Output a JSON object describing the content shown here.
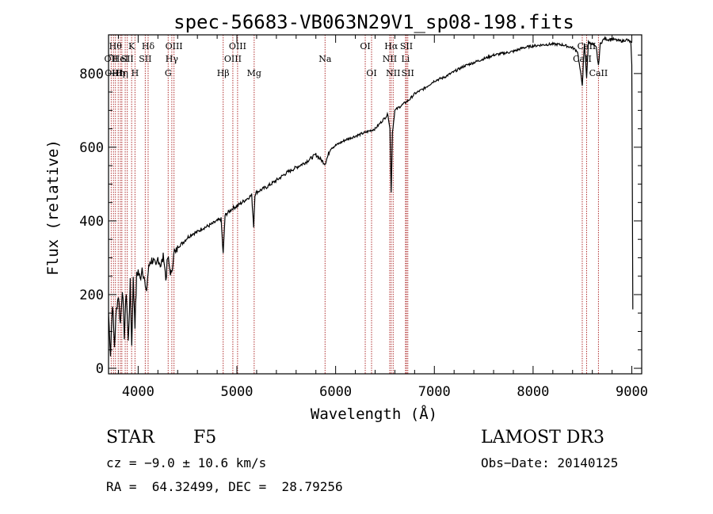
{
  "chart_data": {
    "type": "line",
    "title": "spec-56683-VB063N29V1_sp08-198.fits",
    "xlabel": "Wavelength (Å)",
    "ylabel": "Flux (relative)",
    "xlim": [
      3700,
      9100
    ],
    "ylim": [
      -15,
      905
    ],
    "xticks": [
      4000,
      5000,
      6000,
      7000,
      8000,
      9000
    ],
    "yticks": [
      0,
      200,
      400,
      600,
      800
    ],
    "xtick_labels": [
      "4000",
      "5000",
      "6000",
      "7000",
      "8000",
      "9000"
    ],
    "ytick_labels": [
      "0",
      "200",
      "400",
      "600",
      "800"
    ],
    "series": [
      {
        "name": "flux",
        "x": [
          3700,
          3720,
          3740,
          3760,
          3780,
          3800,
          3820,
          3840,
          3860,
          3880,
          3900,
          3920,
          3935,
          3950,
          3968,
          3985,
          4000,
          4020,
          4040,
          4060,
          4080,
          4101,
          4120,
          4150,
          4180,
          4200,
          4230,
          4260,
          4280,
          4300,
          4320,
          4340,
          4360,
          4380,
          4400,
          4450,
          4500,
          4550,
          4600,
          4650,
          4700,
          4750,
          4800,
          4840,
          4861,
          4880,
          4920,
          4960,
          5000,
          5050,
          5100,
          5150,
          5170,
          5183,
          5200,
          5250,
          5300,
          5400,
          5500,
          5600,
          5700,
          5800,
          5893,
          5950,
          6000,
          6100,
          6200,
          6300,
          6400,
          6450,
          6500,
          6530,
          6550,
          6563,
          6575,
          6600,
          6650,
          6700,
          6750,
          6800,
          6900,
          7000,
          7100,
          7200,
          7300,
          7400,
          7500,
          7600,
          7700,
          7800,
          7900,
          8000,
          8100,
          8200,
          8300,
          8400,
          8450,
          8498,
          8520,
          8542,
          8560,
          8600,
          8640,
          8662,
          8680,
          8720,
          8760,
          8800,
          8850,
          8900,
          8950,
          8990,
          9000,
          9010
        ],
        "values": [
          150,
          40,
          180,
          60,
          160,
          200,
          120,
          220,
          90,
          210,
          70,
          230,
          60,
          240,
          120,
          250,
          265,
          240,
          275,
          250,
          200,
          260,
          290,
          295,
          270,
          300,
          280,
          305,
          240,
          300,
          270,
          250,
          320,
          310,
          330,
          340,
          355,
          365,
          370,
          380,
          385,
          392,
          400,
          405,
          310,
          415,
          425,
          435,
          440,
          450,
          460,
          470,
          385,
          472,
          478,
          485,
          492,
          510,
          530,
          545,
          560,
          580,
          555,
          598,
          605,
          620,
          630,
          640,
          650,
          665,
          680,
          690,
          650,
          480,
          640,
          700,
          710,
          720,
          730,
          745,
          760,
          780,
          790,
          805,
          820,
          830,
          840,
          850,
          855,
          860,
          870,
          875,
          878,
          880,
          878,
          870,
          860,
          770,
          880,
          790,
          885,
          880,
          870,
          820,
          880,
          895,
          892,
          894,
          890,
          888,
          892,
          885,
          820,
          160
        ]
      }
    ],
    "lines": [
      {
        "x": 3727,
        "label": "OII",
        "row": 2
      },
      {
        "x": 3750,
        "label": "OIII",
        "row": 3
      },
      {
        "x": 3770,
        "label": "Hθ",
        "row": 1
      },
      {
        "x": 3798,
        "label": "Hη",
        "row": 3
      },
      {
        "x": 3820,
        "label": "HeI",
        "row": 2
      },
      {
        "x": 3835,
        "label": "Hη",
        "row": 3
      },
      {
        "x": 3869,
        "label": "",
        "row": 0
      },
      {
        "x": 3890,
        "label": "SII",
        "row": 2
      },
      {
        "x": 3934,
        "label": "K",
        "row": 1
      },
      {
        "x": 3968,
        "label": "H",
        "row": 3
      },
      {
        "x": 4072,
        "label": "SII",
        "row": 2
      },
      {
        "x": 4101,
        "label": "Hδ",
        "row": 1
      },
      {
        "x": 4304,
        "label": "G",
        "row": 3
      },
      {
        "x": 4341,
        "label": "Hγ",
        "row": 2
      },
      {
        "x": 4363,
        "label": "OIII",
        "row": 1
      },
      {
        "x": 4861,
        "label": "Hβ",
        "row": 3
      },
      {
        "x": 4959,
        "label": "OIII",
        "row": 2
      },
      {
        "x": 5007,
        "label": "OIII",
        "row": 1
      },
      {
        "x": 5175,
        "label": "Mg",
        "row": 3
      },
      {
        "x": 5893,
        "label": "Na",
        "row": 2
      },
      {
        "x": 6300,
        "label": "OI",
        "row": 1
      },
      {
        "x": 6364,
        "label": "OI",
        "row": 3
      },
      {
        "x": 6548,
        "label": "NII",
        "row": 2
      },
      {
        "x": 6563,
        "label": "Hα",
        "row": 1
      },
      {
        "x": 6583,
        "label": "NII",
        "row": 3
      },
      {
        "x": 6708,
        "label": "Li",
        "row": 2
      },
      {
        "x": 6717,
        "label": "SII",
        "row": 1
      },
      {
        "x": 6731,
        "label": "SII",
        "row": 3
      },
      {
        "x": 8498,
        "label": "CaII",
        "row": 2
      },
      {
        "x": 8542,
        "label": "CaII",
        "row": 1
      },
      {
        "x": 8662,
        "label": "CaII",
        "row": 3
      }
    ]
  },
  "info": {
    "object_class": "STAR",
    "subclass": "F5",
    "survey": "LAMOST DR3",
    "cz": "cz = −9.0 ± 10.6 km/s",
    "obs_date": "Obs−Date: 20140125",
    "coords": "RA =  64.32499, DEC =  28.79256"
  }
}
